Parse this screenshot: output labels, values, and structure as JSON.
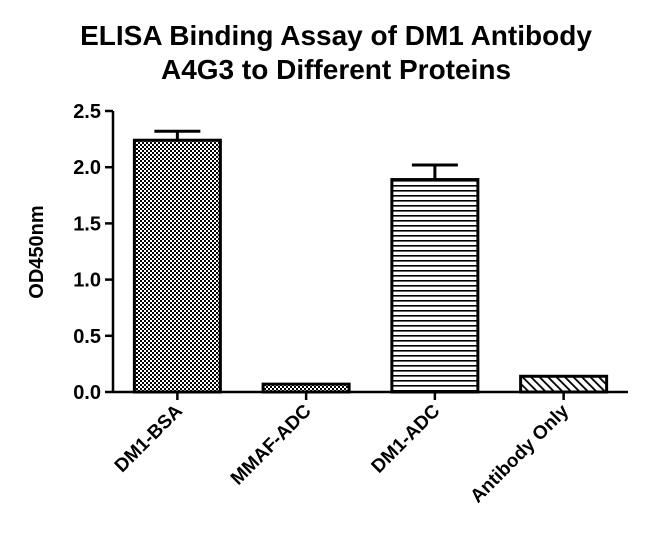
{
  "chart_data": {
    "type": "bar",
    "title_line1": "ELISA Binding Assay of DM1 Antibody",
    "title_line2": "A4G3 to Different Proteins",
    "ylabel": "OD450nm",
    "xlabel": "",
    "ylim": [
      0,
      2.5
    ],
    "yticks": [
      "0.0",
      "0.5",
      "1.0",
      "1.5",
      "2.0",
      "2.5"
    ],
    "categories": [
      "DM1-BSA",
      "MMAF-ADC",
      "DM1-ADC",
      "Antibody Only"
    ],
    "values": [
      2.24,
      0.07,
      1.89,
      0.14
    ],
    "errors": [
      0.08,
      0.0,
      0.13,
      0.0
    ],
    "fill_patterns": [
      "checker",
      "checker",
      "horizontal-lines",
      "diagonal-lines"
    ],
    "grid": false,
    "legend": "none"
  }
}
